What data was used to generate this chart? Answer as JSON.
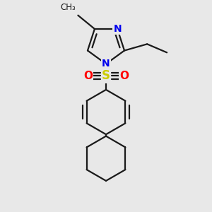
{
  "background_color": "#e8e8e8",
  "line_color": "#1a1a1a",
  "N_color": "#0000ee",
  "S_color": "#cccc00",
  "O_color": "#ff0000",
  "line_width": 1.6,
  "dpi": 100,
  "figsize": [
    3.0,
    3.0
  ],
  "xlim": [
    -1.8,
    1.8
  ],
  "ylim": [
    -2.5,
    2.2
  ]
}
